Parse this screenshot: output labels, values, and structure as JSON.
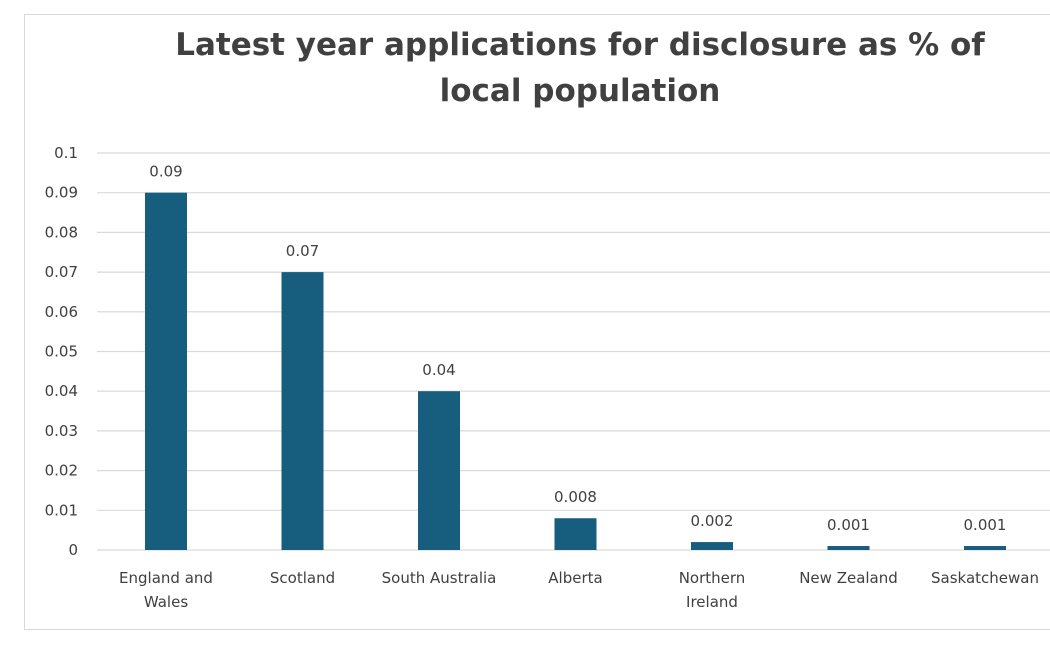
{
  "chart_data": {
    "type": "bar",
    "title": "Latest year applications for disclosure as % of local population",
    "categories": [
      [
        "England and",
        "Wales"
      ],
      [
        "Scotland"
      ],
      [
        "South Australia"
      ],
      [
        "Alberta"
      ],
      [
        "Northern",
        "Ireland"
      ],
      [
        "New Zealand"
      ],
      [
        "Saskatchewan"
      ]
    ],
    "values": [
      0.09,
      0.07,
      0.04,
      0.008,
      0.002,
      0.001,
      0.001
    ],
    "data_labels": [
      "0.09",
      "0.07",
      "0.04",
      "0.008",
      "0.002",
      "0.001",
      "0.001"
    ],
    "y_ticks": [
      "0",
      "0.01",
      "0.02",
      "0.03",
      "0.04",
      "0.05",
      "0.06",
      "0.07",
      "0.08",
      "0.09",
      "0.1"
    ],
    "ylim": [
      0,
      0.1
    ],
    "grid": true,
    "bar_color": "#175d7e",
    "grid_color": "#d9d9d9"
  }
}
